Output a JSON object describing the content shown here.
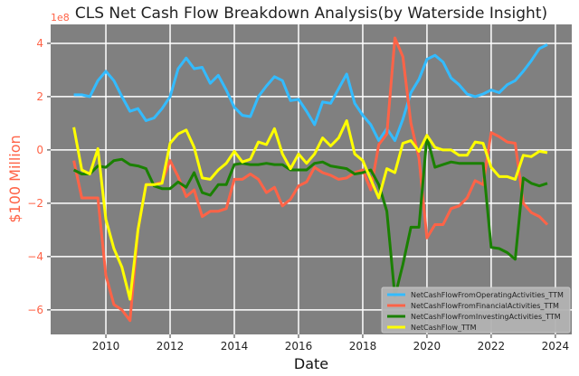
{
  "chart_data": {
    "type": "line",
    "title": "CLS Net Cash Flow Breakdown Analysis(by Waterside Insight)",
    "xlabel": "Date",
    "ylabel": "$100 Million",
    "y_offset_label": "1e8",
    "xlim": [
      2008.28,
      2024.51
    ],
    "ylim": [
      -6.92,
      4.71
    ],
    "x_ticks": [
      2010,
      2012,
      2014,
      2016,
      2018,
      2020,
      2022,
      2024
    ],
    "x_tick_labels": [
      "2010",
      "2012",
      "2014",
      "2016",
      "2018",
      "2020",
      "2022",
      "2024"
    ],
    "y_ticks": [
      4,
      2,
      0,
      -2,
      -4,
      -6
    ],
    "y_tick_labels": [
      "4",
      "2",
      "0",
      "−2",
      "−4",
      "−6"
    ],
    "grid": true,
    "legend_position": "bottom-right",
    "colors": {
      "plot_bg": "#808080",
      "grid": "#ffffff",
      "axis_label": "#ff6347"
    },
    "x_start": 2009.0,
    "x_step": 0.25,
    "series": [
      {
        "name": "NetCashFlowFromOperatingActivities_TTM",
        "color": "#33bbff",
        "values": [
          2.07,
          2.07,
          2.0,
          2.6,
          2.95,
          2.6,
          2.0,
          1.45,
          1.55,
          1.1,
          1.2,
          1.55,
          2.0,
          3.05,
          3.45,
          3.05,
          3.1,
          2.5,
          2.8,
          2.25,
          1.6,
          1.3,
          1.25,
          2.0,
          2.4,
          2.75,
          2.6,
          1.85,
          1.9,
          1.45,
          0.95,
          1.8,
          1.75,
          2.3,
          2.85,
          1.75,
          1.3,
          0.95,
          0.35,
          0.8,
          0.35,
          1.15,
          2.15,
          2.65,
          3.4,
          3.55,
          3.3,
          2.7,
          2.45,
          2.1,
          2.0,
          2.1,
          2.25,
          2.15,
          2.45,
          2.6,
          2.95,
          3.35,
          3.8,
          3.95
        ]
      },
      {
        "name": "NetCashFlowFromFinancialActivities_TTM",
        "color": "#ff6347",
        "values": [
          -0.4,
          -1.8,
          -1.8,
          -1.8,
          -4.7,
          -5.8,
          -6.0,
          -6.4,
          -3.0,
          -1.3,
          -1.3,
          -1.2,
          -0.4,
          -1.0,
          -1.75,
          -1.5,
          -2.5,
          -2.3,
          -2.3,
          -2.2,
          -1.1,
          -1.1,
          -0.9,
          -1.1,
          -1.6,
          -1.4,
          -2.1,
          -1.85,
          -1.35,
          -1.2,
          -0.65,
          -0.85,
          -0.95,
          -1.1,
          -1.05,
          -0.85,
          -0.75,
          -1.5,
          0.2,
          0.6,
          4.2,
          3.5,
          1.0,
          -0.3,
          -3.3,
          -2.8,
          -2.8,
          -2.2,
          -2.1,
          -1.8,
          -1.15,
          -1.3,
          0.65,
          0.5,
          0.3,
          0.25,
          -2.0,
          -2.35,
          -2.5,
          -2.8
        ]
      },
      {
        "name": "NetCashFlowFromInvestingActivities_TTM",
        "color": "#1a8000",
        "values": [
          -0.75,
          -0.9,
          -0.9,
          -0.6,
          -0.65,
          -0.4,
          -0.35,
          -0.55,
          -0.6,
          -0.7,
          -1.35,
          -1.45,
          -1.45,
          -1.2,
          -1.4,
          -0.85,
          -1.6,
          -1.7,
          -1.3,
          -1.3,
          -0.55,
          -0.5,
          -0.55,
          -0.55,
          -0.5,
          -0.55,
          -0.55,
          -0.75,
          -0.75,
          -0.75,
          -0.5,
          -0.45,
          -0.6,
          -0.65,
          -0.7,
          -0.9,
          -0.85,
          -0.75,
          -1.3,
          -2.3,
          -5.5,
          -4.3,
          -2.9,
          -2.9,
          0.5,
          -0.65,
          -0.55,
          -0.45,
          -0.5,
          -0.5,
          -0.5,
          -0.5,
          -3.65,
          -3.7,
          -3.85,
          -4.1,
          -1.05,
          -1.25,
          -1.35,
          -1.25
        ]
      },
      {
        "name": "NetCashFlow_TTM",
        "color": "#ffff00",
        "values": [
          0.85,
          -0.75,
          -0.9,
          0.05,
          -2.6,
          -3.7,
          -4.4,
          -5.6,
          -3.0,
          -1.3,
          -1.3,
          -1.25,
          0.25,
          0.6,
          0.75,
          0.1,
          -1.05,
          -1.1,
          -0.75,
          -0.5,
          -0.05,
          -0.45,
          -0.35,
          0.3,
          0.2,
          0.8,
          -0.15,
          -0.7,
          -0.15,
          -0.5,
          -0.15,
          0.45,
          0.15,
          0.45,
          1.1,
          -0.15,
          -0.4,
          -1.1,
          -1.8,
          -0.7,
          -0.85,
          0.25,
          0.35,
          -0.05,
          0.55,
          0.1,
          0.0,
          0.0,
          -0.2,
          -0.2,
          0.3,
          0.25,
          -0.65,
          -1.0,
          -1.0,
          -1.1,
          -0.2,
          -0.25,
          -0.05,
          -0.1
        ]
      }
    ]
  }
}
